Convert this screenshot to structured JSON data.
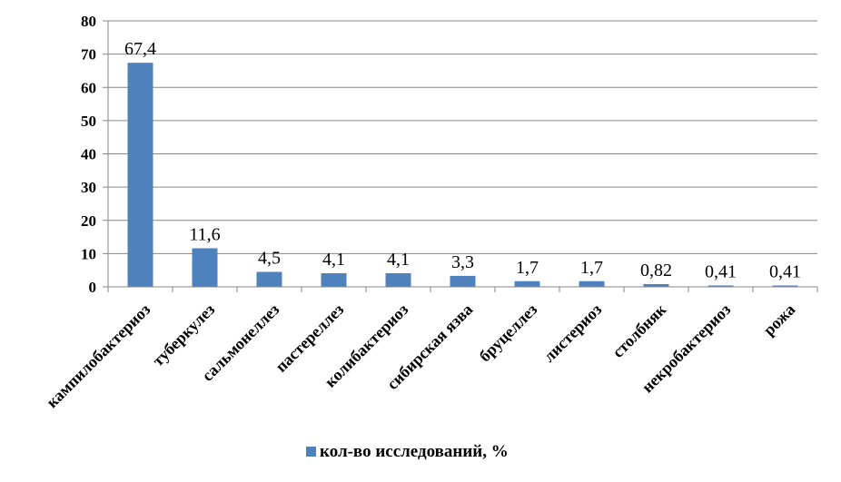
{
  "chart_data": {
    "type": "bar",
    "categories": [
      "кампилобактериоз",
      "туберкулез",
      "сальмонеллез",
      "пастереллез",
      "колибактериоз",
      "сибирская язва",
      "бруцеллез",
      "листериоз",
      "столбняк",
      "некробактериоз",
      "рожа"
    ],
    "series": [
      {
        "name": "кол-во исследований, %",
        "values": [
          67.4,
          11.6,
          4.5,
          4.1,
          4.1,
          3.3,
          1.7,
          1.7,
          0.82,
          0.41,
          0.41
        ]
      }
    ],
    "data_labels": [
      "67,4",
      "11,6",
      "4,5",
      "4,1",
      "4,1",
      "3,3",
      "1,7",
      "1,7",
      "0,82",
      "0,41",
      "0,41"
    ],
    "title": "",
    "xlabel": "",
    "ylabel": "",
    "ylim": [
      0,
      80
    ],
    "yticks": [
      0,
      10,
      20,
      30,
      40,
      50,
      60,
      70,
      80
    ],
    "grid": true,
    "legend_position": "bottom",
    "colors": {
      "bar": "#4F81BD",
      "grid": "#868686",
      "axis": "#868686"
    }
  }
}
